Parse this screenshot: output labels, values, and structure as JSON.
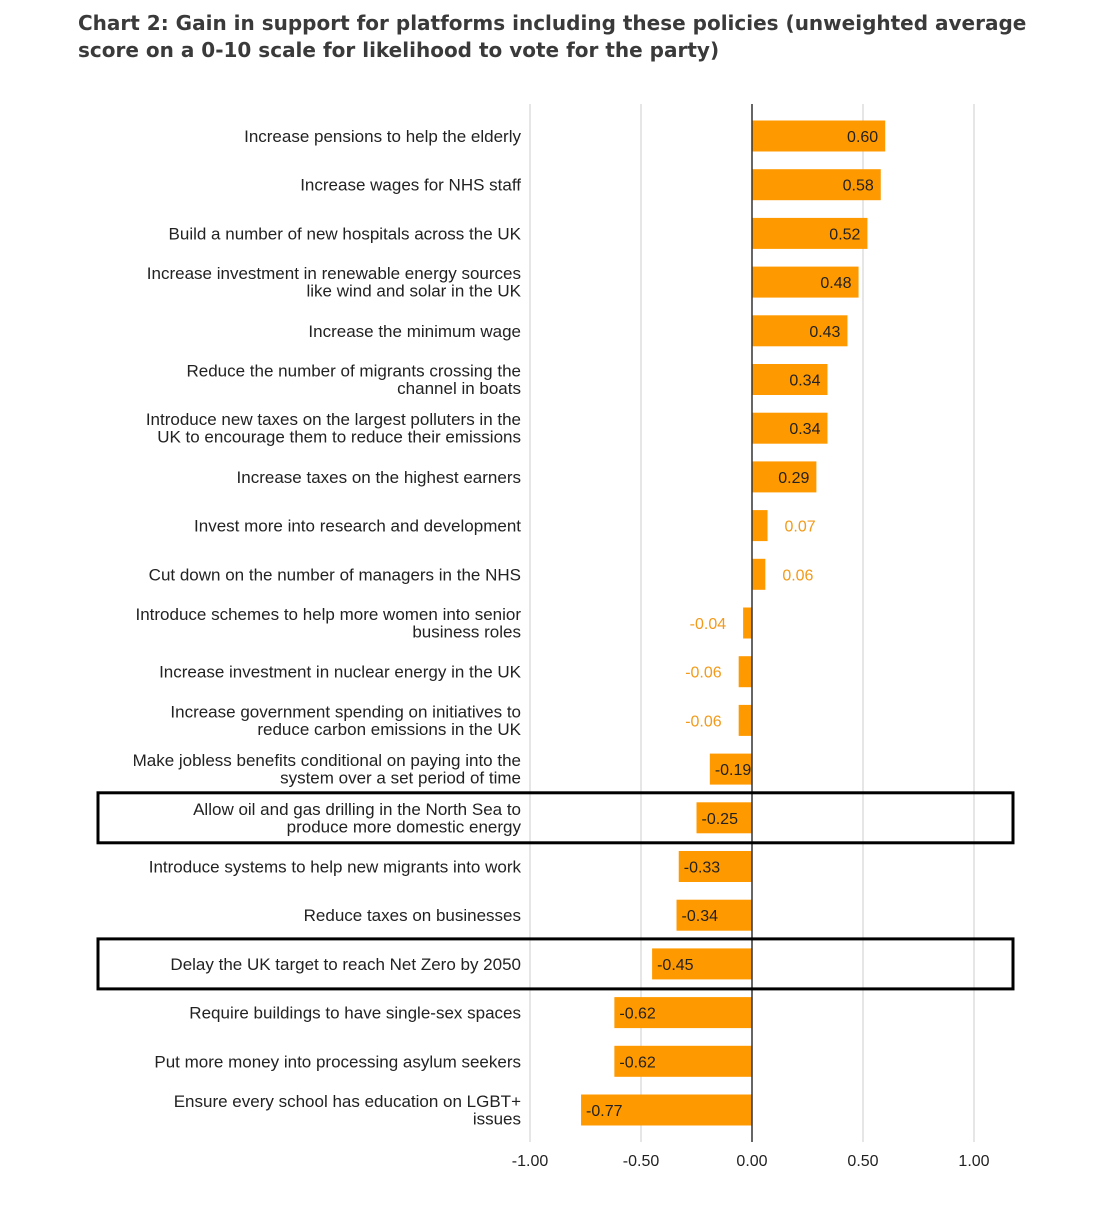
{
  "chart_data": {
    "type": "bar",
    "orientation": "horizontal",
    "title": "Chart 2: Gain in support for platforms including these policies (unweighted average score on a 0-10 scale for likelihood to vote for the party)",
    "categories": [
      [
        "Increase pensions to help the elderly"
      ],
      [
        "Increase wages for NHS staff"
      ],
      [
        "Build a number of new hospitals across the UK"
      ],
      [
        "Increase investment in renewable energy sources",
        "like wind and solar in the UK"
      ],
      [
        "Increase the minimum wage"
      ],
      [
        "Reduce the number of migrants crossing the",
        "channel in boats"
      ],
      [
        "Introduce new taxes on the largest polluters in the",
        "UK to encourage them to reduce their emissions"
      ],
      [
        "Increase taxes on the highest earners"
      ],
      [
        "Invest more into research and development"
      ],
      [
        "Cut down on the number of managers in the NHS"
      ],
      [
        "Introduce schemes to help more women into senior",
        "business roles"
      ],
      [
        "Increase investment in nuclear energy in the UK"
      ],
      [
        "Increase government spending on initiatives to",
        "reduce carbon emissions in the UK"
      ],
      [
        "Make jobless benefits conditional on paying into the",
        "system over a set period of time"
      ],
      [
        "Allow oil and gas drilling in the North Sea to",
        "produce more domestic energy"
      ],
      [
        "Introduce systems to help new migrants into work"
      ],
      [
        "Reduce taxes on businesses"
      ],
      [
        "Delay the UK target to reach Net Zero by 2050"
      ],
      [
        "Require buildings to have single-sex spaces"
      ],
      [
        "Put more money into processing asylum seekers"
      ],
      [
        "Ensure every school has education on LGBT+",
        "issues"
      ]
    ],
    "values": [
      0.6,
      0.58,
      0.52,
      0.48,
      0.43,
      0.34,
      0.34,
      0.29,
      0.07,
      0.06,
      -0.04,
      -0.06,
      -0.06,
      -0.19,
      -0.25,
      -0.33,
      -0.34,
      -0.45,
      -0.62,
      -0.62,
      -0.77
    ],
    "value_labels": [
      "0.60",
      "0.58",
      "0.52",
      "0.48",
      "0.43",
      "0.34",
      "0.34",
      "0.29",
      "0.07",
      "0.06",
      "-0.04",
      "-0.06",
      "-0.06",
      "-0.19",
      "-0.25",
      "-0.33",
      "-0.34",
      "-0.45",
      "-0.62",
      "-0.62",
      "-0.77"
    ],
    "xlim": [
      -1.0,
      1.0
    ],
    "x_ticks": [
      -1.0,
      -0.5,
      0.0,
      0.5,
      1.0
    ],
    "x_tick_labels": [
      "-1.00",
      "-0.50",
      "0.00",
      "0.50",
      "1.00"
    ],
    "grid": "vertical",
    "highlighted_categories": [
      14,
      17
    ],
    "colors": {
      "bar": "#FF9900",
      "label_inside": "#222222",
      "label_outside": "#F29A1A",
      "grid": "#CCCCCC",
      "zero_line": "#333333",
      "highlight_box": "#000000"
    }
  }
}
